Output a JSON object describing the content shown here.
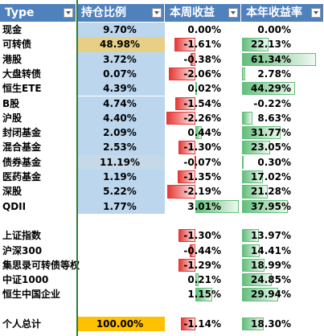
{
  "table": {
    "header": [
      "Type",
      "持仓比例",
      "本周收益",
      "本年收益率"
    ],
    "rows": [
      [
        "现金",
        "9.70%",
        "0.00%",
        "0.00%"
      ],
      [
        "可转债",
        "48.98%",
        "-1.61%",
        "22.13%"
      ],
      [
        "港股",
        "3.72%",
        "-0.38%",
        "61.34%"
      ],
      [
        "大盘转债",
        "0.07%",
        "-2.06%",
        "2.78%"
      ],
      [
        "恒生ETE",
        "4.39%",
        "0.02%",
        "44.29%"
      ],
      [
        "B股",
        "4.74%",
        "-1.54%",
        "-0.22%"
      ],
      [
        "沪股",
        "4.40%",
        "-2.26%",
        "8.63%"
      ],
      [
        "封闭基金",
        "2.09%",
        "0.44%",
        "31.77%"
      ],
      [
        "混合基金",
        "2.53%",
        "-1.30%",
        "23.05%"
      ],
      [
        "债券基金",
        "11.19%",
        "-0.07%",
        "0.30%"
      ],
      [
        "医药基金",
        "1.19%",
        "-1.35%",
        "17.02%"
      ],
      [
        "深股",
        "5.22%",
        "-2.19%",
        "21.28%"
      ],
      [
        "QDII",
        "1.77%",
        "3.01%",
        "37.95%"
      ],
      null,
      [
        "上证指数",
        null,
        "-1.30%",
        "13.97%"
      ],
      [
        "沪深300",
        null,
        "-0.44%",
        "14.41%"
      ],
      [
        "集思录可转债等权",
        null,
        "-1.29%",
        "18.99%"
      ],
      [
        "中证1000",
        null,
        "0.21%",
        "24.85%"
      ],
      [
        "恒生中国企业",
        null,
        "1.15%",
        "29.94%"
      ],
      null,
      [
        "个人总计",
        "100.00%",
        "-1.14%",
        "18.30%"
      ]
    ]
  }
}
